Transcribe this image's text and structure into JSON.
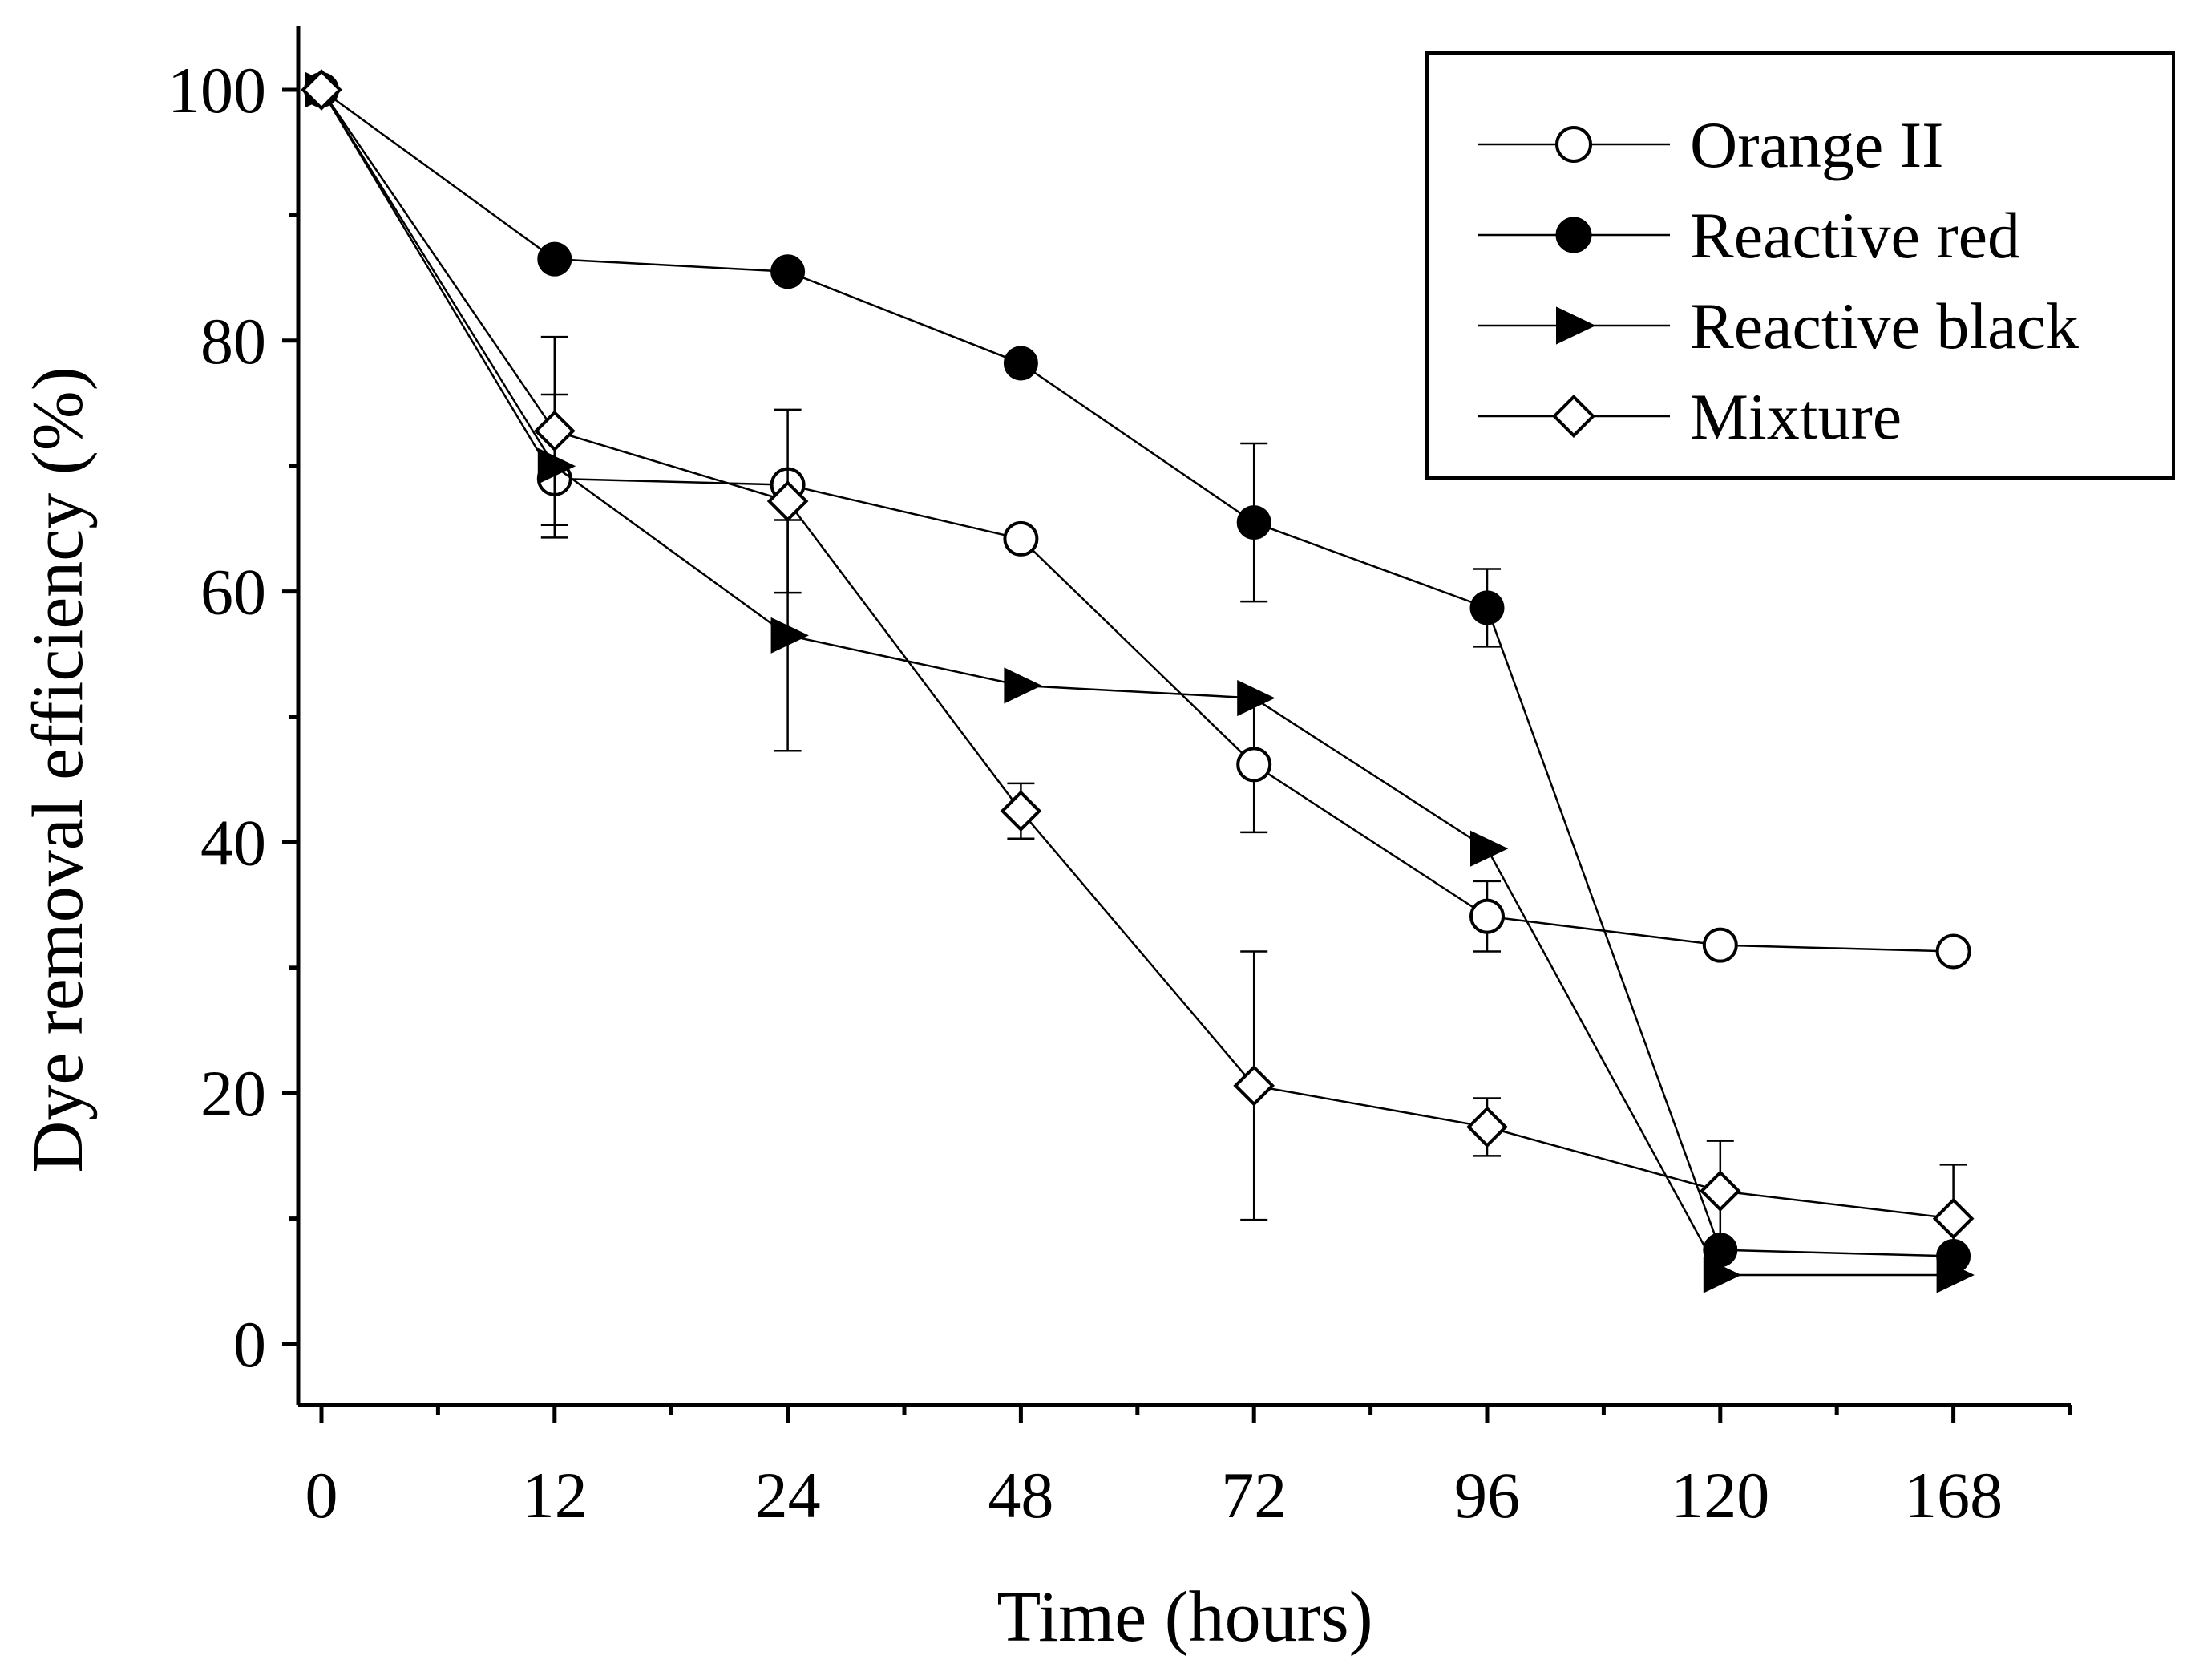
{
  "chart_data": {
    "type": "line",
    "title": "",
    "xlabel": "Time (hours)",
    "ylabel": "Dye removal efficiency (%)",
    "categories": [
      "0",
      "12",
      "24",
      "48",
      "72",
      "96",
      "120",
      "168"
    ],
    "ylim": [
      -5,
      105
    ],
    "yticks": [
      0,
      20,
      40,
      60,
      80,
      100
    ],
    "ytick_labels": [
      "0",
      "20",
      "40",
      "60",
      "80",
      "100"
    ],
    "grid": false,
    "legend_position": "top-right",
    "colors": {
      "line": "#000000",
      "background": "#ffffff"
    },
    "series": [
      {
        "name": "Orange II",
        "marker": "open-circle",
        "values": [
          100,
          69,
          68.5,
          64.2,
          46.2,
          34.1,
          31.8,
          31.3
        ],
        "errors": [
          0,
          0,
          0,
          0.5,
          5.4,
          2.8,
          0.8,
          0.5
        ]
      },
      {
        "name": "Reactive red",
        "marker": "filled-circle",
        "values": [
          100,
          86.5,
          85.5,
          78.2,
          65.5,
          58.7,
          7.5,
          7
        ],
        "errors": [
          0,
          0,
          0,
          0,
          6.3,
          3.1,
          0,
          0
        ]
      },
      {
        "name": "Reactive black",
        "marker": "filled-triangle-right",
        "values": [
          100,
          70,
          56.5,
          52.5,
          51.5,
          39.5,
          5.5,
          5.5
        ],
        "errors": [
          0,
          5.7,
          9.2,
          0,
          0,
          0,
          0,
          0
        ]
      },
      {
        "name": "Mixture",
        "marker": "open-diamond",
        "values": [
          100,
          72.8,
          67.2,
          42.5,
          20.6,
          17.3,
          12.2,
          10
        ],
        "errors": [
          0,
          7.5,
          7.3,
          2.2,
          10.7,
          2.3,
          4,
          4.3
        ]
      }
    ]
  }
}
